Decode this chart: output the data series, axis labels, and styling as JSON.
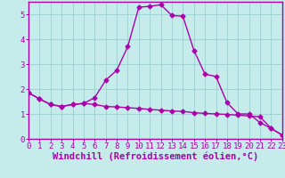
{
  "title": "",
  "xlabel": "Windchill (Refroidissement éolien,°C)",
  "ylabel": "",
  "bg_color": "#c6ebeb",
  "line_color": "#aa00aa",
  "grid_color": "#a0d4d4",
  "spine_color": "#aa00aa",
  "x_values": [
    0,
    1,
    2,
    3,
    4,
    5,
    6,
    7,
    8,
    9,
    10,
    11,
    12,
    13,
    14,
    15,
    16,
    17,
    18,
    19,
    20,
    21,
    22,
    23
  ],
  "curve1_y": [
    1.85,
    1.6,
    1.38,
    1.3,
    1.38,
    1.42,
    1.38,
    1.3,
    1.28,
    1.25,
    1.22,
    1.18,
    1.15,
    1.12,
    1.1,
    1.05,
    1.02,
    1.0,
    0.98,
    0.95,
    0.92,
    0.88,
    0.42,
    0.15
  ],
  "curve2_y": [
    1.85,
    1.6,
    1.38,
    1.3,
    1.38,
    1.42,
    1.65,
    2.35,
    2.75,
    3.7,
    5.28,
    5.32,
    5.38,
    4.95,
    4.92,
    3.55,
    2.6,
    2.5,
    1.45,
    1.0,
    1.0,
    0.65,
    0.42,
    0.15
  ],
  "xlim": [
    0,
    23
  ],
  "ylim": [
    0,
    5.5
  ],
  "yticks": [
    0,
    1,
    2,
    3,
    4,
    5
  ],
  "xticks": [
    0,
    1,
    2,
    3,
    4,
    5,
    6,
    7,
    8,
    9,
    10,
    11,
    12,
    13,
    14,
    15,
    16,
    17,
    18,
    19,
    20,
    21,
    22,
    23
  ],
  "tick_fontsize": 6.5,
  "xlabel_fontsize": 7.5,
  "marker": "D",
  "markersize": 2.5,
  "linewidth": 1.0
}
